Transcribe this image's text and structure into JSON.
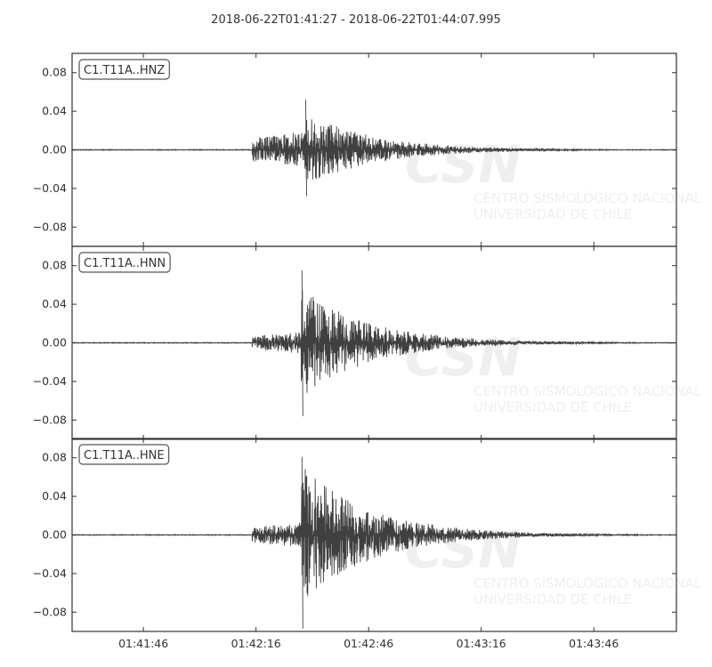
{
  "chart_data": {
    "type": "line",
    "title": "2018-06-22T01:41:27  -  2018-06-22T01:44:07.995",
    "xlabel": "",
    "ylabel": "",
    "x_range": [
      "01:41:27",
      "01:44:07.995"
    ],
    "x_ticks": [
      "01:41:46",
      "01:42:16",
      "01:42:46",
      "01:43:16",
      "01:43:46"
    ],
    "ylim": [
      -0.1,
      0.1
    ],
    "y_ticks": [
      "0.08",
      "0.04",
      "0.00",
      "−0.04",
      "−0.08"
    ],
    "grid": false,
    "line_color": "#404040",
    "panels": [
      {
        "name": "C1.T11A..HNZ",
        "onset_time": "01:42:15",
        "peak_time": "01:42:29",
        "noise_amplitude": 0.001,
        "onset_amplitude": 0.012,
        "peak_positive": 0.052,
        "peak_negative": -0.048
      },
      {
        "name": "C1.T11A..HNN",
        "onset_time": "01:42:15",
        "peak_time": "01:42:28",
        "noise_amplitude": 0.001,
        "onset_amplitude": 0.007,
        "peak_positive": 0.075,
        "peak_negative": -0.076
      },
      {
        "name": "C1.T11A..HNE",
        "onset_time": "01:42:15",
        "peak_time": "01:42:28",
        "noise_amplitude": 0.001,
        "onset_amplitude": 0.008,
        "peak_positive": 0.081,
        "peak_negative": -0.097
      }
    ]
  },
  "watermark": {
    "logo_text": "CSN",
    "line1": "CENTRO SISMOLÓGICO NACIONAL",
    "line2": "UNIVERSIDAD DE CHILE"
  }
}
